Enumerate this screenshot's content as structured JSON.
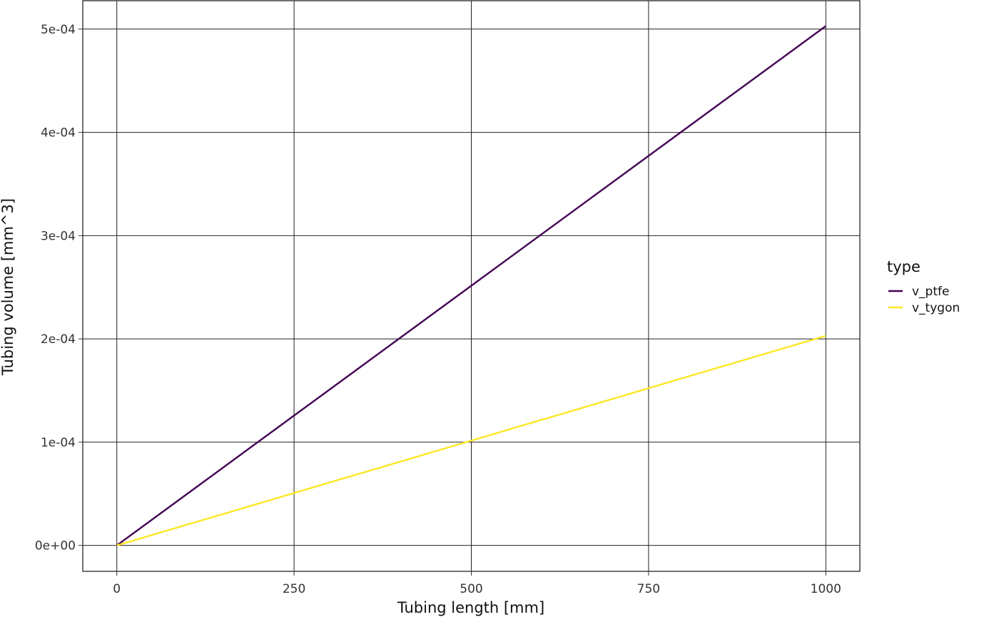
{
  "chart_data": {
    "type": "line",
    "title": "",
    "xlabel": "Tubing length [mm]",
    "ylabel": "Tubing volume [mm^3]",
    "xlim": [
      -48,
      1048
    ],
    "ylim": [
      -2.51e-05,
      0.0005275
    ],
    "x_ticks": [
      0,
      250,
      500,
      750,
      1000
    ],
    "x_tick_labels": [
      "0",
      "250",
      "500",
      "750",
      "1000"
    ],
    "y_ticks": [
      0,
      0.0001,
      0.0002,
      0.0003,
      0.0004,
      0.0005
    ],
    "y_tick_labels": [
      "0e+00",
      "1e-04",
      "2e-04",
      "3e-04",
      "4e-04",
      "5e-04"
    ],
    "grid": true,
    "legend": {
      "title": "type",
      "placement": "right"
    },
    "series": [
      {
        "name": "v_ptfe",
        "color": "#440154",
        "x": [
          0,
          1000
        ],
        "y": [
          0,
          0.000503
        ]
      },
      {
        "name": "v_tygon",
        "color": "#FDE725",
        "x": [
          0,
          1000
        ],
        "y": [
          0,
          0.000203
        ]
      }
    ]
  }
}
